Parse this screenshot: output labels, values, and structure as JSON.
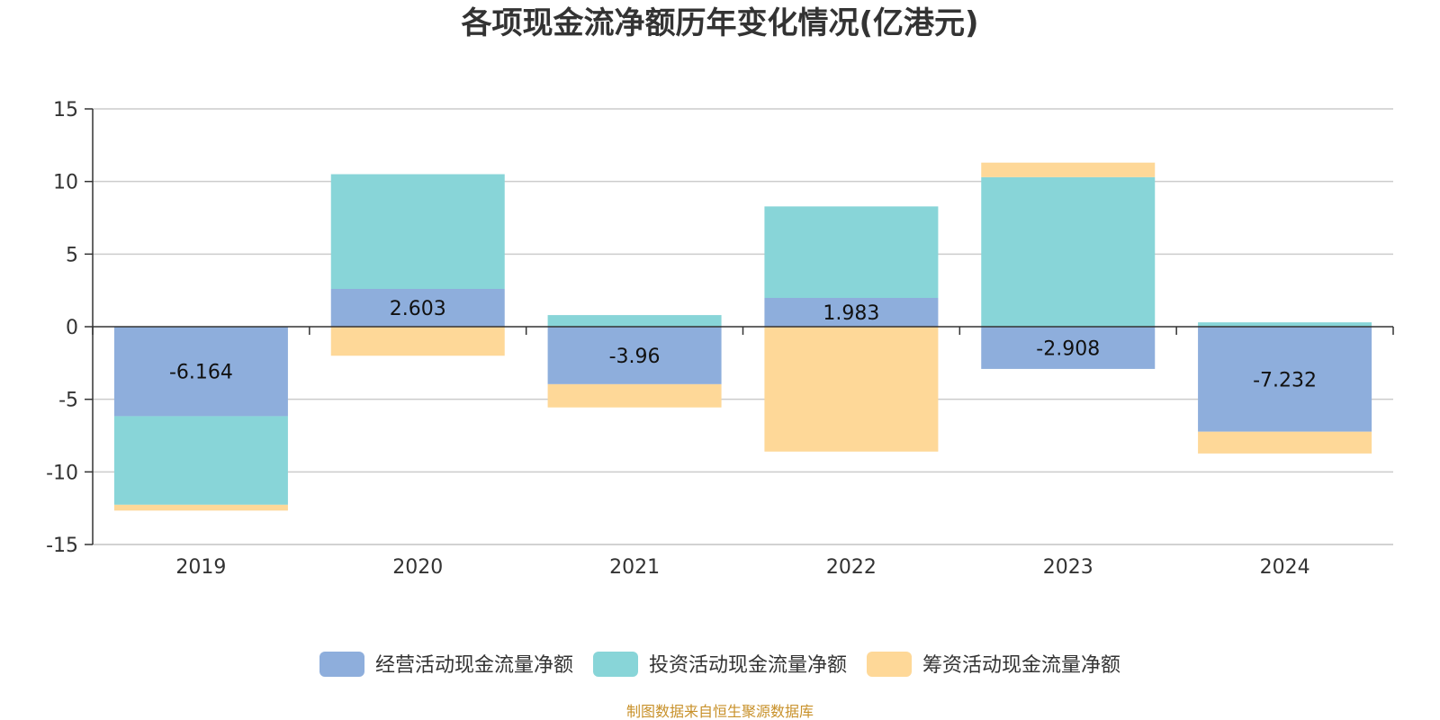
{
  "chart_data": {
    "type": "bar",
    "stacked": true,
    "title": "各项现金流净额历年变化情况(亿港元)",
    "categories": [
      "2019",
      "2020",
      "2021",
      "2022",
      "2023",
      "2024"
    ],
    "ylim": [
      -15,
      15
    ],
    "yticks": [
      15,
      10,
      5,
      0,
      -5,
      -10,
      -15
    ],
    "ytick_labels": [
      "15",
      "10",
      "5",
      "0",
      "-5",
      "-10",
      "-15"
    ],
    "grid": true,
    "legend_position": "bottom",
    "series": [
      {
        "name": "经营活动现金流量净额",
        "color": "#8eaedc",
        "values": [
          -6.164,
          2.603,
          -3.96,
          1.983,
          -2.908,
          -7.232
        ],
        "labels": [
          "-6.164",
          "2.603",
          "-3.96",
          "1.983",
          "-2.908",
          "-7.232"
        ]
      },
      {
        "name": "投资活动现金流量净额",
        "color": "#88d5d8",
        "values": [
          -6.1,
          7.9,
          0.8,
          6.3,
          10.3,
          0.3
        ]
      },
      {
        "name": "筹资活动现金流量净额",
        "color": "#fed898",
        "values": [
          -0.4,
          -2.0,
          -1.6,
          -8.6,
          1.0,
          -1.5
        ]
      }
    ]
  },
  "source_note": "制图数据来自恒生聚源数据库"
}
